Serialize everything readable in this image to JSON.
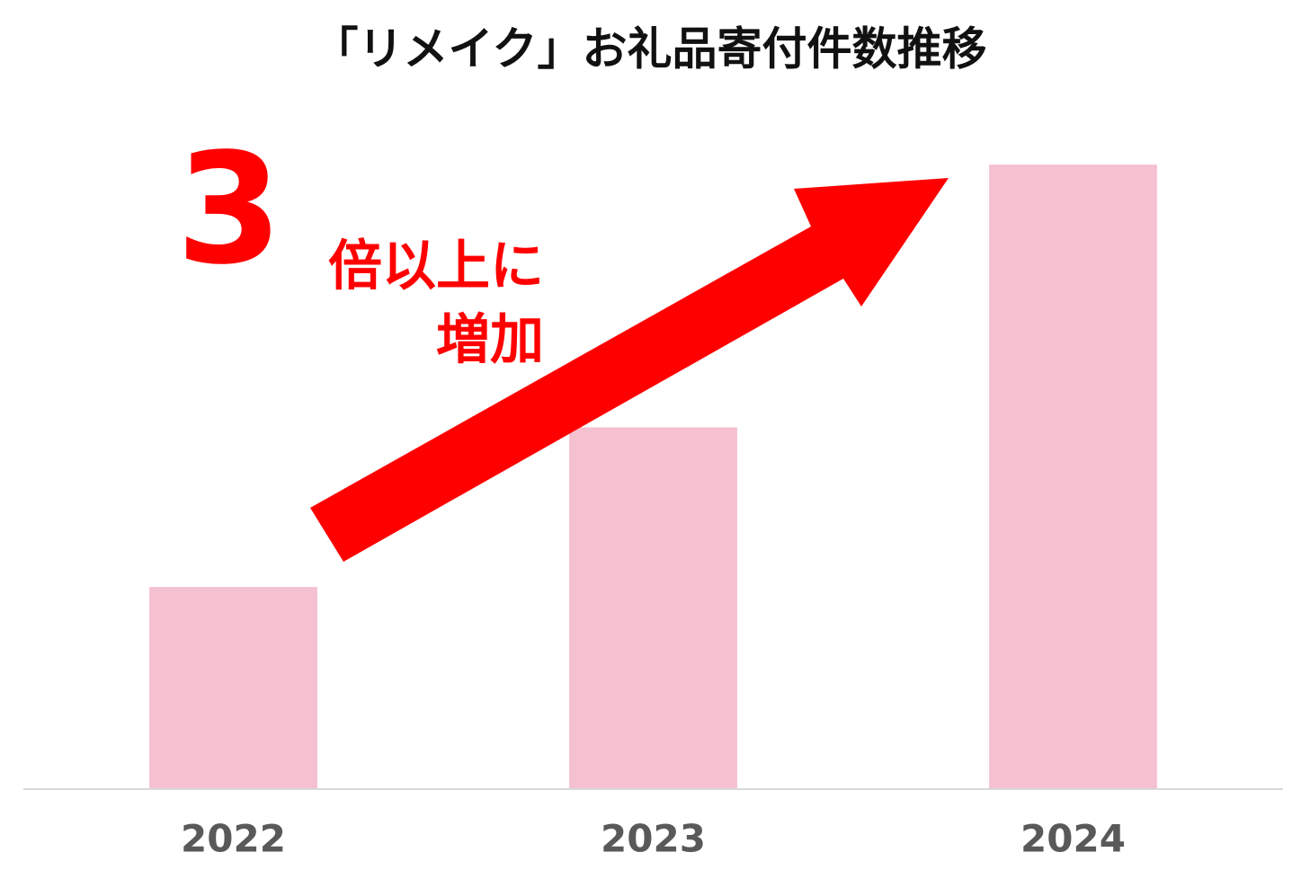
{
  "chart_data": {
    "type": "bar",
    "title": "「リメイク」お礼品寄付件数推移",
    "categories": [
      "2022",
      "2023",
      "2024"
    ],
    "values": [
      1,
      1.79,
      3.09
    ],
    "color": "#f5c0cf",
    "ylim": [
      0,
      3.5
    ],
    "annotations": [
      "3",
      "倍以上に",
      "増加"
    ]
  }
}
